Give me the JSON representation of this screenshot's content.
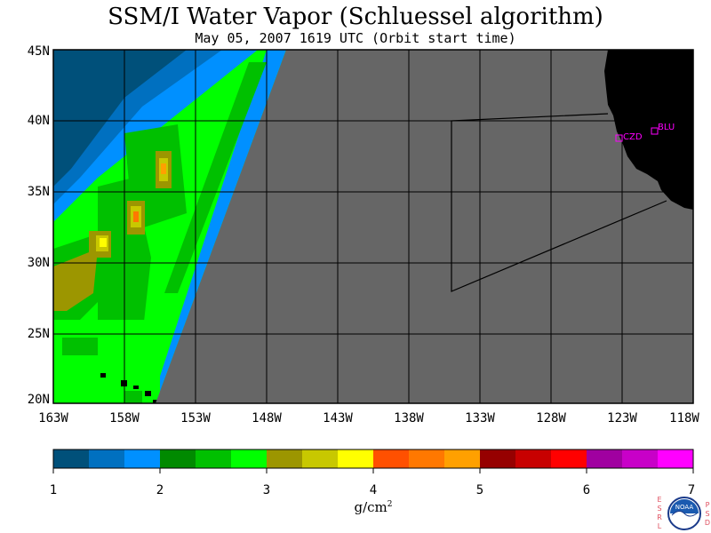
{
  "title": "SSM/I Water Vapor (Schluessel algorithm)",
  "subtitle": "May 05, 2007  1619 UTC  (Orbit start time)",
  "map": {
    "lat_labels": [
      "45N",
      "40N",
      "35N",
      "30N",
      "25N",
      "20N"
    ],
    "lon_labels": [
      "163W",
      "158W",
      "153W",
      "148W",
      "143W",
      "138W",
      "133W",
      "128W",
      "123W",
      "118W"
    ],
    "stations": [
      {
        "code": "CZD",
        "lon": -123.0,
        "lat": 38.6
      },
      {
        "code": "BLU",
        "lon": -120.8,
        "lat": 39.3
      }
    ],
    "colors": {
      "no_data": "#666666",
      "land": "#000000",
      "grid": "#000000",
      "station": "#ff00ff"
    }
  },
  "colorbar": {
    "tick_labels": [
      "1",
      "2",
      "3",
      "4",
      "5",
      "6",
      "7"
    ],
    "units": "g/cm",
    "units_sup": "2",
    "range": [
      1,
      7
    ],
    "colors": [
      "#00507a",
      "#0070c0",
      "#0090ff",
      "#008a00",
      "#00c000",
      "#00ff00",
      "#9c9600",
      "#c8c800",
      "#ffff00",
      "#ff5000",
      "#ff7800",
      "#ffa000",
      "#960000",
      "#c80000",
      "#ff0000",
      "#a000a0",
      "#c800c8",
      "#ff00ff"
    ]
  },
  "logo": {
    "center_text": "NOAA",
    "left_letters": [
      "E",
      "S",
      "R",
      "L"
    ],
    "right_letters": [
      "P",
      "S",
      "D"
    ]
  }
}
